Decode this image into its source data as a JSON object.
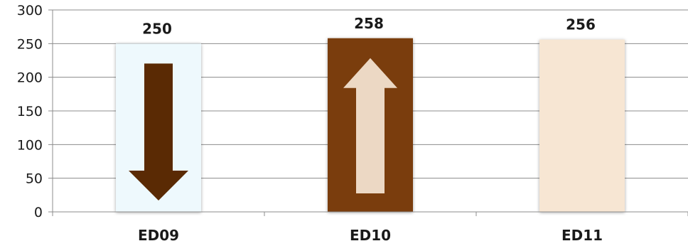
{
  "chart_data": {
    "type": "bar",
    "categories": [
      "ED09",
      "ED10",
      "ED11"
    ],
    "values": [
      250,
      258,
      256
    ],
    "data_labels": [
      "250",
      "258",
      "256"
    ],
    "ylim": [
      0,
      300
    ],
    "yticks": [
      0,
      50,
      100,
      150,
      200,
      250,
      300
    ],
    "grid": true,
    "legend": "none",
    "bar_colors": [
      "#eef9fd",
      "#7a3d0c",
      "#f7e6d3"
    ],
    "bar_arrows": [
      "down",
      "up",
      "none"
    ],
    "arrow_colors": [
      "#5a2a04",
      "#ecd8c4",
      ""
    ],
    "axis_color": "#8c8c8c"
  }
}
